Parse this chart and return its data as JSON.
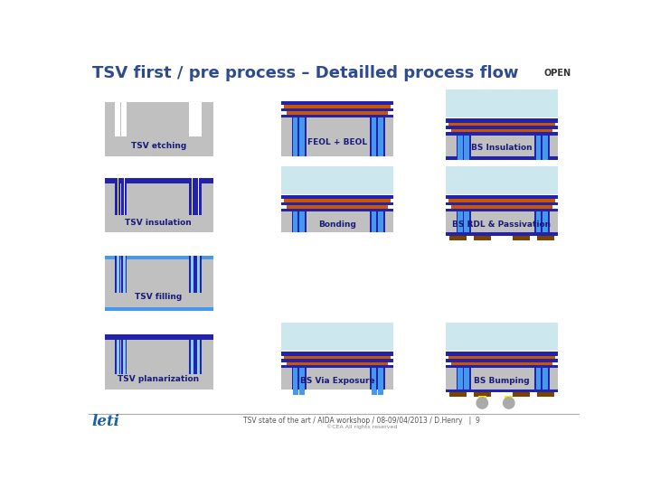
{
  "title": "TSV first / pre process – Detailled process flow",
  "title_color": "#2E4B8F",
  "title_fontsize": 13,
  "background_color": "#ffffff",
  "footer_text": "TSV state of the art / AIDA workshop / 08-09/04/2013 / D.Henry   |  9",
  "footer_sub": "©CEA All rights reserved",
  "leti_color": "#1a5fa8",
  "col1_labels": [
    "TSV etching",
    "TSV insulation",
    "TSV filling",
    "TSV planarization"
  ],
  "col2_labels": [
    "FEOL + BEOL",
    "Bonding",
    "BS Via Exposure"
  ],
  "col3_labels": [
    "BS Insulation",
    "BS RDL & Passivation",
    "BS Bumping"
  ],
  "si_color": "#c0c0c0",
  "ins_color": "#2222aa",
  "cu_color": "#4499ee",
  "cu_light": "#88ccff",
  "orange": "#cc5500",
  "dark_blue": "#1a1a7a",
  "carrier_color": "#cce8ee",
  "brown": "#7a4400",
  "yellow": "#eeee00",
  "bump_color": "#aaaaaa"
}
